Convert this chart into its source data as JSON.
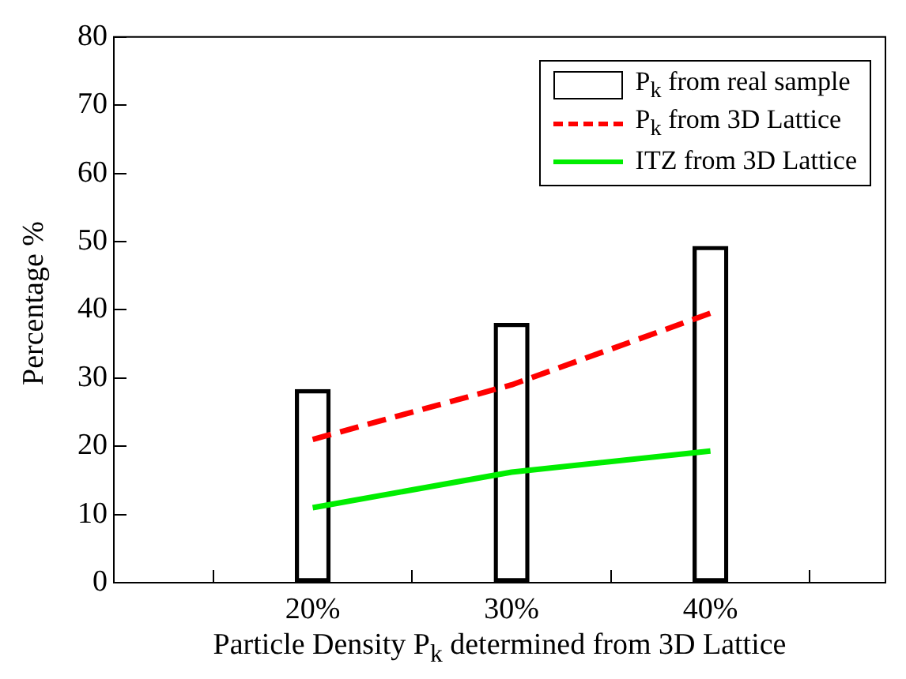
{
  "chart_data": {
    "type": "bar",
    "xlabel": "Particle Density P$_{k}$ determined from 3D Lattice",
    "ylabel": "Percentage %",
    "x": [
      20,
      30,
      40
    ],
    "series": [
      {
        "name": "P$_{k}$ from real sample",
        "color": "#000000",
        "values": [
          28.3,
          38,
          49.3
        ]
      },
      {
        "name": "P$_{k}$ from 3D Lattice",
        "type": "line",
        "color": "#ff0000",
        "line_style": "dashed",
        "values": [
          21,
          29,
          39.5
        ]
      },
      {
        "name": "ITZ from 3D Lattice",
        "type": "line",
        "color": "#00ee00",
        "line_style": "solid",
        "values": [
          11,
          16.2,
          19.3
        ]
      }
    ],
    "xlim": [
      10,
      48.8
    ],
    "xticks": [
      {
        "value": 20,
        "label": "20%"
      },
      {
        "value": 30,
        "label": "30%"
      },
      {
        "value": 40,
        "label": "40%"
      }
    ],
    "ylim": [
      0,
      80
    ],
    "yticks": [
      0,
      10,
      20,
      30,
      40,
      50,
      60,
      70,
      80
    ],
    "grid": false,
    "legend": "top right",
    "marker": "none"
  }
}
